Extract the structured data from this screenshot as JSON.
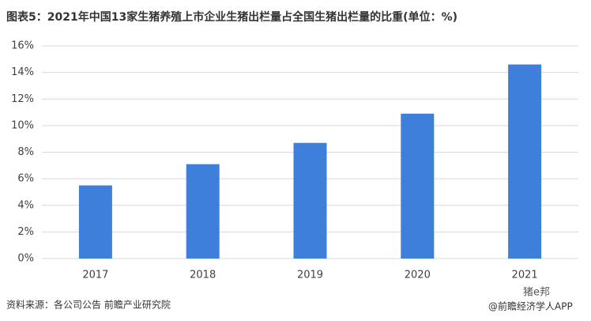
{
  "chart_data": {
    "type": "bar",
    "title": "图表5：2021年中国13家生猪养殖上市企业生猪出栏量占全国生猪出栏量的比重(单位：%)",
    "categories": [
      "2017",
      "2018",
      "2019",
      "2020",
      "2021"
    ],
    "values": [
      5.5,
      7.1,
      8.7,
      10.9,
      14.6
    ],
    "color": "#3f7fdc",
    "ylim": [
      0,
      16
    ],
    "yticks": [
      {
        "value": 0,
        "label": "0%"
      },
      {
        "value": 2,
        "label": "2%"
      },
      {
        "value": 4,
        "label": "4%"
      },
      {
        "value": 6,
        "label": "6%"
      },
      {
        "value": 8,
        "label": "8%"
      },
      {
        "value": 10,
        "label": "10%"
      },
      {
        "value": 12,
        "label": "12%"
      },
      {
        "value": 14,
        "label": "14%"
      },
      {
        "value": 16,
        "label": "16%"
      }
    ],
    "grid": true,
    "source": "资料来源：各公司公告 前瞻产业研究院",
    "badge": "猪e邦",
    "credit": "@前瞻经济学人APP"
  }
}
